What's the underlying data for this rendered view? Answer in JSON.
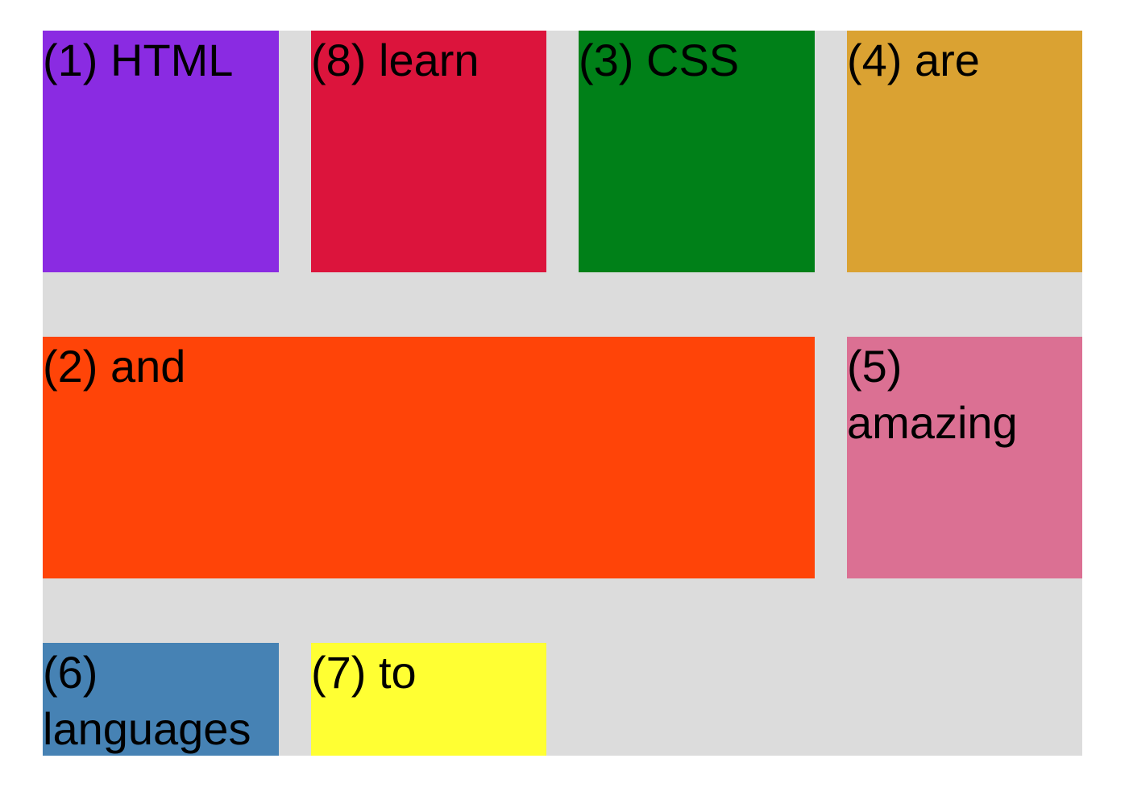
{
  "boxes": [
    {
      "key": "b1",
      "label": "(1) HTML",
      "color": "#8a2be2"
    },
    {
      "key": "b8",
      "label": "(8) learn",
      "color": "#dc143c"
    },
    {
      "key": "b3",
      "label": "(3) CSS",
      "color": "#008018"
    },
    {
      "key": "b4",
      "label": "(4) are",
      "color": "#daa232"
    },
    {
      "key": "b2",
      "label": "(2) and",
      "color": "#ff4408"
    },
    {
      "key": "b5",
      "label": "(5) amazing",
      "color": "#db7093"
    },
    {
      "key": "b6",
      "label": "(6) languages",
      "color": "#4682b4"
    },
    {
      "key": "b7",
      "label": "(7) to",
      "color": "#ffff33"
    }
  ],
  "colors": {
    "container_background": "#dcdcdc",
    "page_background": "#ffffff"
  }
}
